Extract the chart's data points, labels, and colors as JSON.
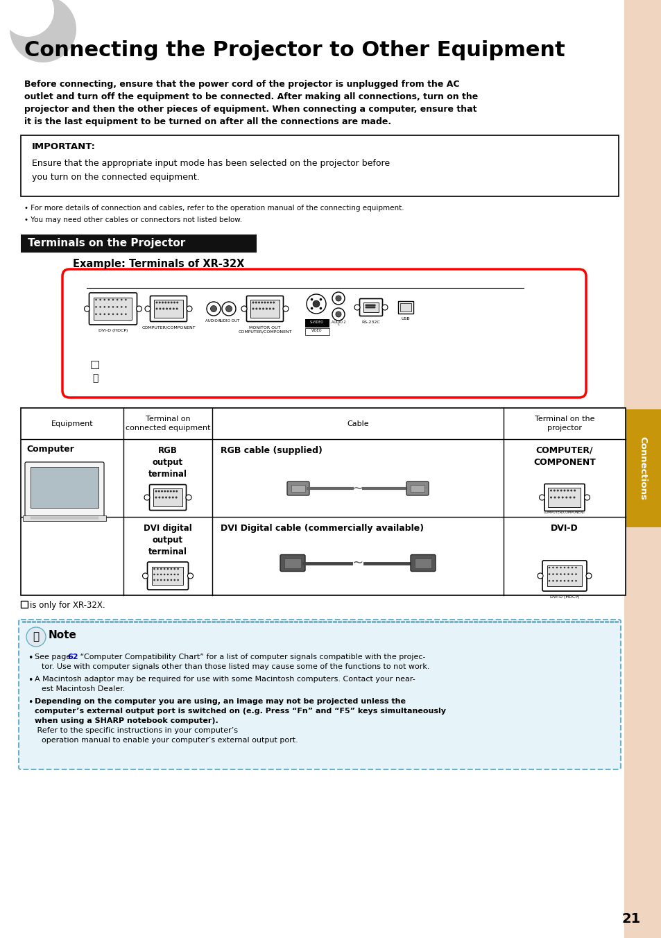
{
  "page_bg": "#ffffff",
  "right_sidebar_color": "#f0d5c0",
  "right_sidebar_connections_color": "#c8960a",
  "title": "Connecting the Projector to Other Equipment",
  "intro_text_lines": [
    "Before connecting, ensure that the power cord of the projector is unplugged from the AC",
    "outlet and turn off the equipment to be connected. After making all connections, turn on the",
    "projector and then the other pieces of equipment. When connecting a computer, ensure that",
    "it is the last equipment to be turned on after all the connections are made."
  ],
  "important_label": "IMPORTANT:",
  "important_text_lines": [
    "Ensure that the appropriate input mode has been selected on the projector before",
    "you turn on the connected equipment."
  ],
  "bullet1": "For more details of connection and cables, refer to the operation manual of the connecting equipment.",
  "bullet2": "You may need other cables or connectors not listed below.",
  "section_title": "Terminals on the Projector",
  "section_title_bg": "#111111",
  "section_title_color": "#ffffff",
  "example_title": "Example: Terminals of XR-32X",
  "table_header_equipment": "Equipment",
  "table_header_terminal": "Terminal on\nconnected equipment",
  "table_header_cable": "Cable",
  "table_header_projector": "Terminal on the\nprojector",
  "row1_equip": "Computer",
  "row1_term": "RGB\noutput\nterminal",
  "row1_cable": "RGB cable (supplied)",
  "row1_proj": "COMPUTER/\nCOMPONENT",
  "row2_term": "DVI digital\noutput\nterminal",
  "row2_cable": "DVI Digital cable (commercially available)",
  "row2_proj": "DVI-D",
  "xr32x_note": "is only for XR-32X.",
  "note_bg": "#e6f3f8",
  "note_border": "#6ab0c8",
  "note_title": "Note",
  "note1_pre": "See page ",
  "note1_page": "62",
  "note1_post": " “Computer Compatibility Chart” for a list of computer signals compatible with the projec-",
  "note1_post2": "tor. Use with computer signals other than those listed may cause some of the functions to not work.",
  "note2_line1": "A Macintosh adaptor may be required for use with some Macintosh computers. Contact your near-",
  "note2_line2": "est Macintosh Dealer.",
  "note3_bold_lines": [
    "Depending on the computer you are using, an image may not be projected unless the",
    "computer’s external output port is switched on (e.g. Press “Fn” and “F5” keys simultaneously",
    "when using a SHARP notebook computer)."
  ],
  "note3_normal_lines": [
    " Refer to the specific instructions in your computer’s",
    "operation manual to enable your computer’s external output port."
  ],
  "page_number": "21",
  "connections_text": "Connections"
}
